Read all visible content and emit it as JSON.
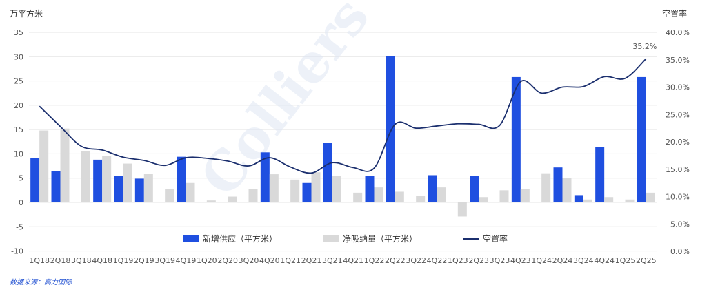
{
  "chart_data": {
    "type": "bar",
    "left_axis_title": "万平方米",
    "right_axis_title": "空置率",
    "ylim": [
      -10,
      35
    ],
    "y2lim": [
      0,
      40
    ],
    "yticks": [
      "35",
      "30",
      "25",
      "20",
      "15",
      "10",
      "5",
      "0",
      "-5",
      "-10"
    ],
    "y2ticks": [
      "40.0%",
      "35.0%",
      "30.0%",
      "25.0%",
      "20.0%",
      "15.0%",
      "10.0%",
      "5.0%",
      "0.0%"
    ],
    "categories": [
      "1Q18",
      "2Q18",
      "3Q18",
      "4Q18",
      "1Q19",
      "2Q19",
      "3Q19",
      "4Q19",
      "1Q20",
      "2Q20",
      "3Q20",
      "4Q20",
      "1Q21",
      "2Q21",
      "3Q21",
      "4Q21",
      "1Q22",
      "2Q22",
      "3Q22",
      "4Q22",
      "1Q23",
      "2Q23",
      "3Q23",
      "4Q23",
      "1Q24",
      "2Q24",
      "3Q24",
      "4Q24",
      "1Q25",
      "2Q25"
    ],
    "series": [
      {
        "name": "新增供应（平方米）",
        "type": "bar",
        "axis": "left",
        "color": "#1f4fe0",
        "values": [
          9.2,
          6.4,
          0,
          8.8,
          5.5,
          4.9,
          0,
          9.4,
          0,
          0,
          0,
          10.3,
          0,
          4.0,
          12.2,
          0,
          5.5,
          30.1,
          0,
          5.6,
          0,
          5.5,
          0,
          25.8,
          0,
          7.2,
          1.5,
          11.4,
          0,
          25.8
        ]
      },
      {
        "name": "净吸纳量（平方米）",
        "type": "bar",
        "axis": "left",
        "color": "#d9d9d9",
        "values": [
          14.8,
          15.2,
          10.6,
          9.6,
          8.0,
          5.9,
          2.7,
          4.0,
          0.4,
          1.2,
          2.7,
          5.8,
          4.7,
          6.2,
          5.4,
          2.0,
          3.1,
          2.2,
          1.4,
          3.1,
          -2.9,
          1.1,
          2.5,
          2.8,
          6.0,
          5.0,
          0.6,
          1.1,
          0.6,
          2.0
        ]
      },
      {
        "name": "空置率",
        "type": "line",
        "axis": "right",
        "color": "#1b2f6e",
        "values": [
          26.5,
          22.8,
          19.2,
          18.5,
          17.2,
          16.6,
          15.7,
          17.1,
          17.0,
          16.5,
          15.6,
          17.1,
          15.4,
          14.3,
          16.2,
          15.3,
          15.2,
          23.2,
          22.5,
          22.9,
          23.3,
          23.2,
          23.0,
          31.0,
          28.9,
          30.0,
          30.1,
          31.9,
          31.6,
          35.2
        ]
      }
    ],
    "annotations": [
      {
        "label": "35.2%",
        "category": "2Q25",
        "series": "空置率"
      }
    ],
    "legend_position": "bottom-center",
    "grid": true
  },
  "watermark": "Colliers",
  "source": "数据来源：高力国际"
}
